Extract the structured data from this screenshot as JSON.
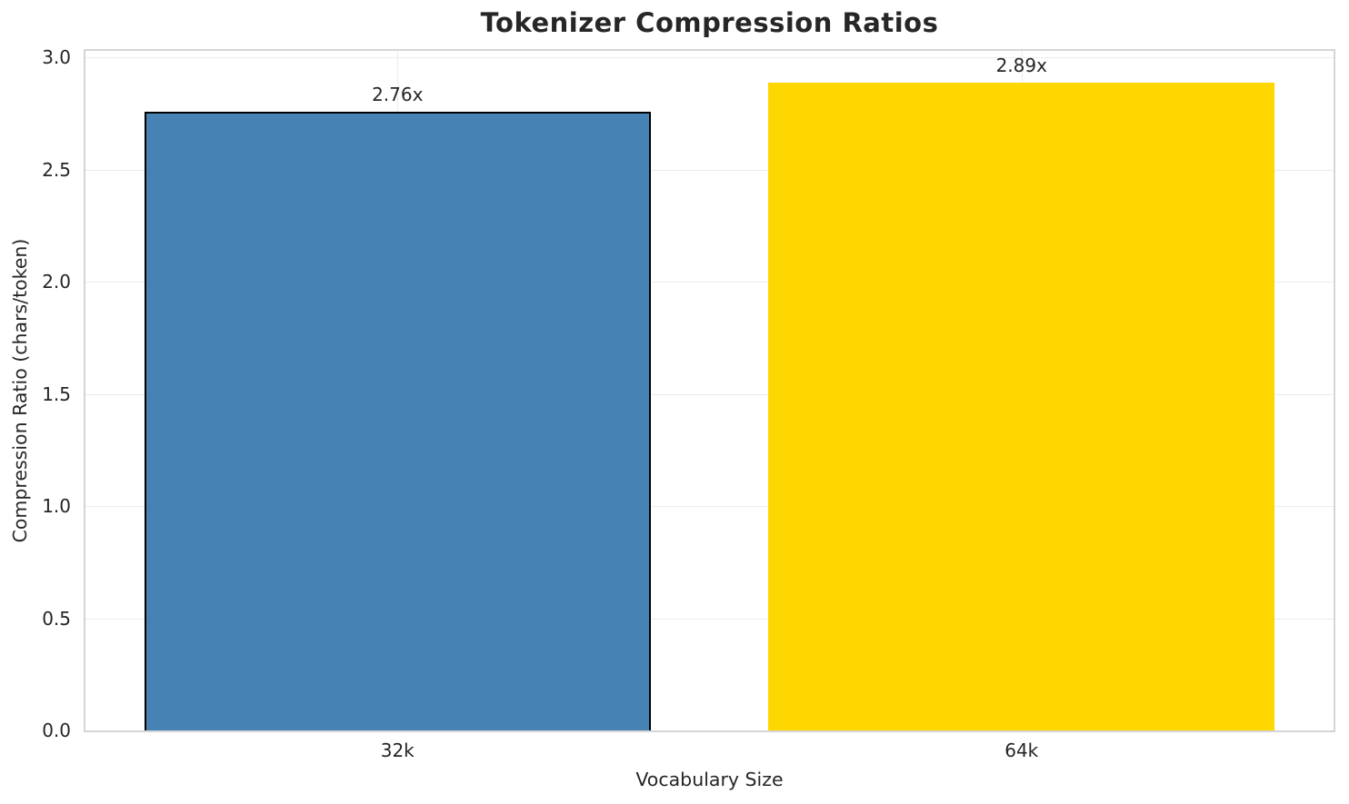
{
  "title": "Tokenizer Compression Ratios",
  "chart_data": {
    "type": "bar",
    "title": "Tokenizer Compression Ratios",
    "xlabel": "Vocabulary Size",
    "ylabel": "Compression Ratio (chars/token)",
    "categories": [
      "32k",
      "64k"
    ],
    "values": [
      2.76,
      2.89
    ],
    "bar_labels": [
      "2.76x",
      "2.89x"
    ],
    "bar_colors": [
      "#4682B4",
      "#FFD700"
    ],
    "bar_edge_colors": [
      "#000000",
      "none"
    ],
    "ylim": [
      0,
      3.03
    ],
    "yticks": [
      0.0,
      0.5,
      1.0,
      1.5,
      2.0,
      2.5,
      3.0
    ],
    "ytick_labels": [
      "0.0",
      "0.5",
      "1.0",
      "1.5",
      "2.0",
      "2.5",
      "3.0"
    ],
    "grid": true,
    "grid_color": "#ececec",
    "spine_color": "#d5d5d5",
    "legend_position": "none",
    "background": "#ffffff",
    "text_color": "#262626"
  }
}
